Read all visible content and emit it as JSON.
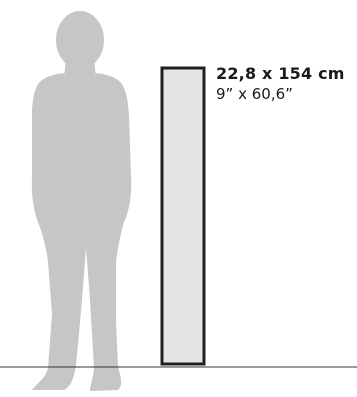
{
  "dimensions": {
    "metric": "22,8 x 154 cm",
    "imperial": "9” x 60,6”"
  },
  "colors": {
    "silhouette": "#c6c6c6",
    "panel_fill": "#e4e4e4",
    "panel_border": "#1f1f1f",
    "floor_line": "#333333"
  },
  "icons": {
    "figure": "standing-man-silhouette"
  }
}
